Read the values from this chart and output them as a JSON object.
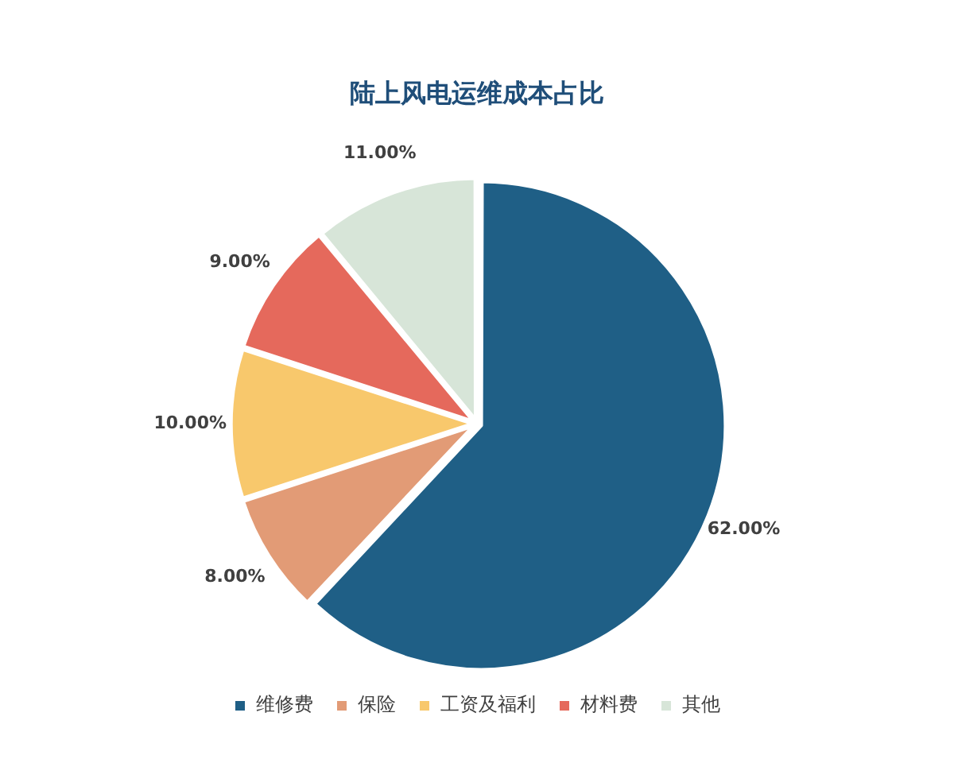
{
  "chart_data": {
    "type": "pie",
    "title": "陆上风电运维成本占比",
    "categories": [
      "维修费",
      "保险",
      "工资及福利",
      "材料费",
      "其他"
    ],
    "values": [
      62,
      8,
      10,
      9,
      11
    ],
    "value_labels": [
      "62.00%",
      "8.00%",
      "10.00%",
      "9.00%",
      "11.00%"
    ],
    "colors": [
      "#1f5f86",
      "#e29b76",
      "#f8c86c",
      "#e5695c",
      "#d7e5d8"
    ],
    "legend": "bottom"
  }
}
